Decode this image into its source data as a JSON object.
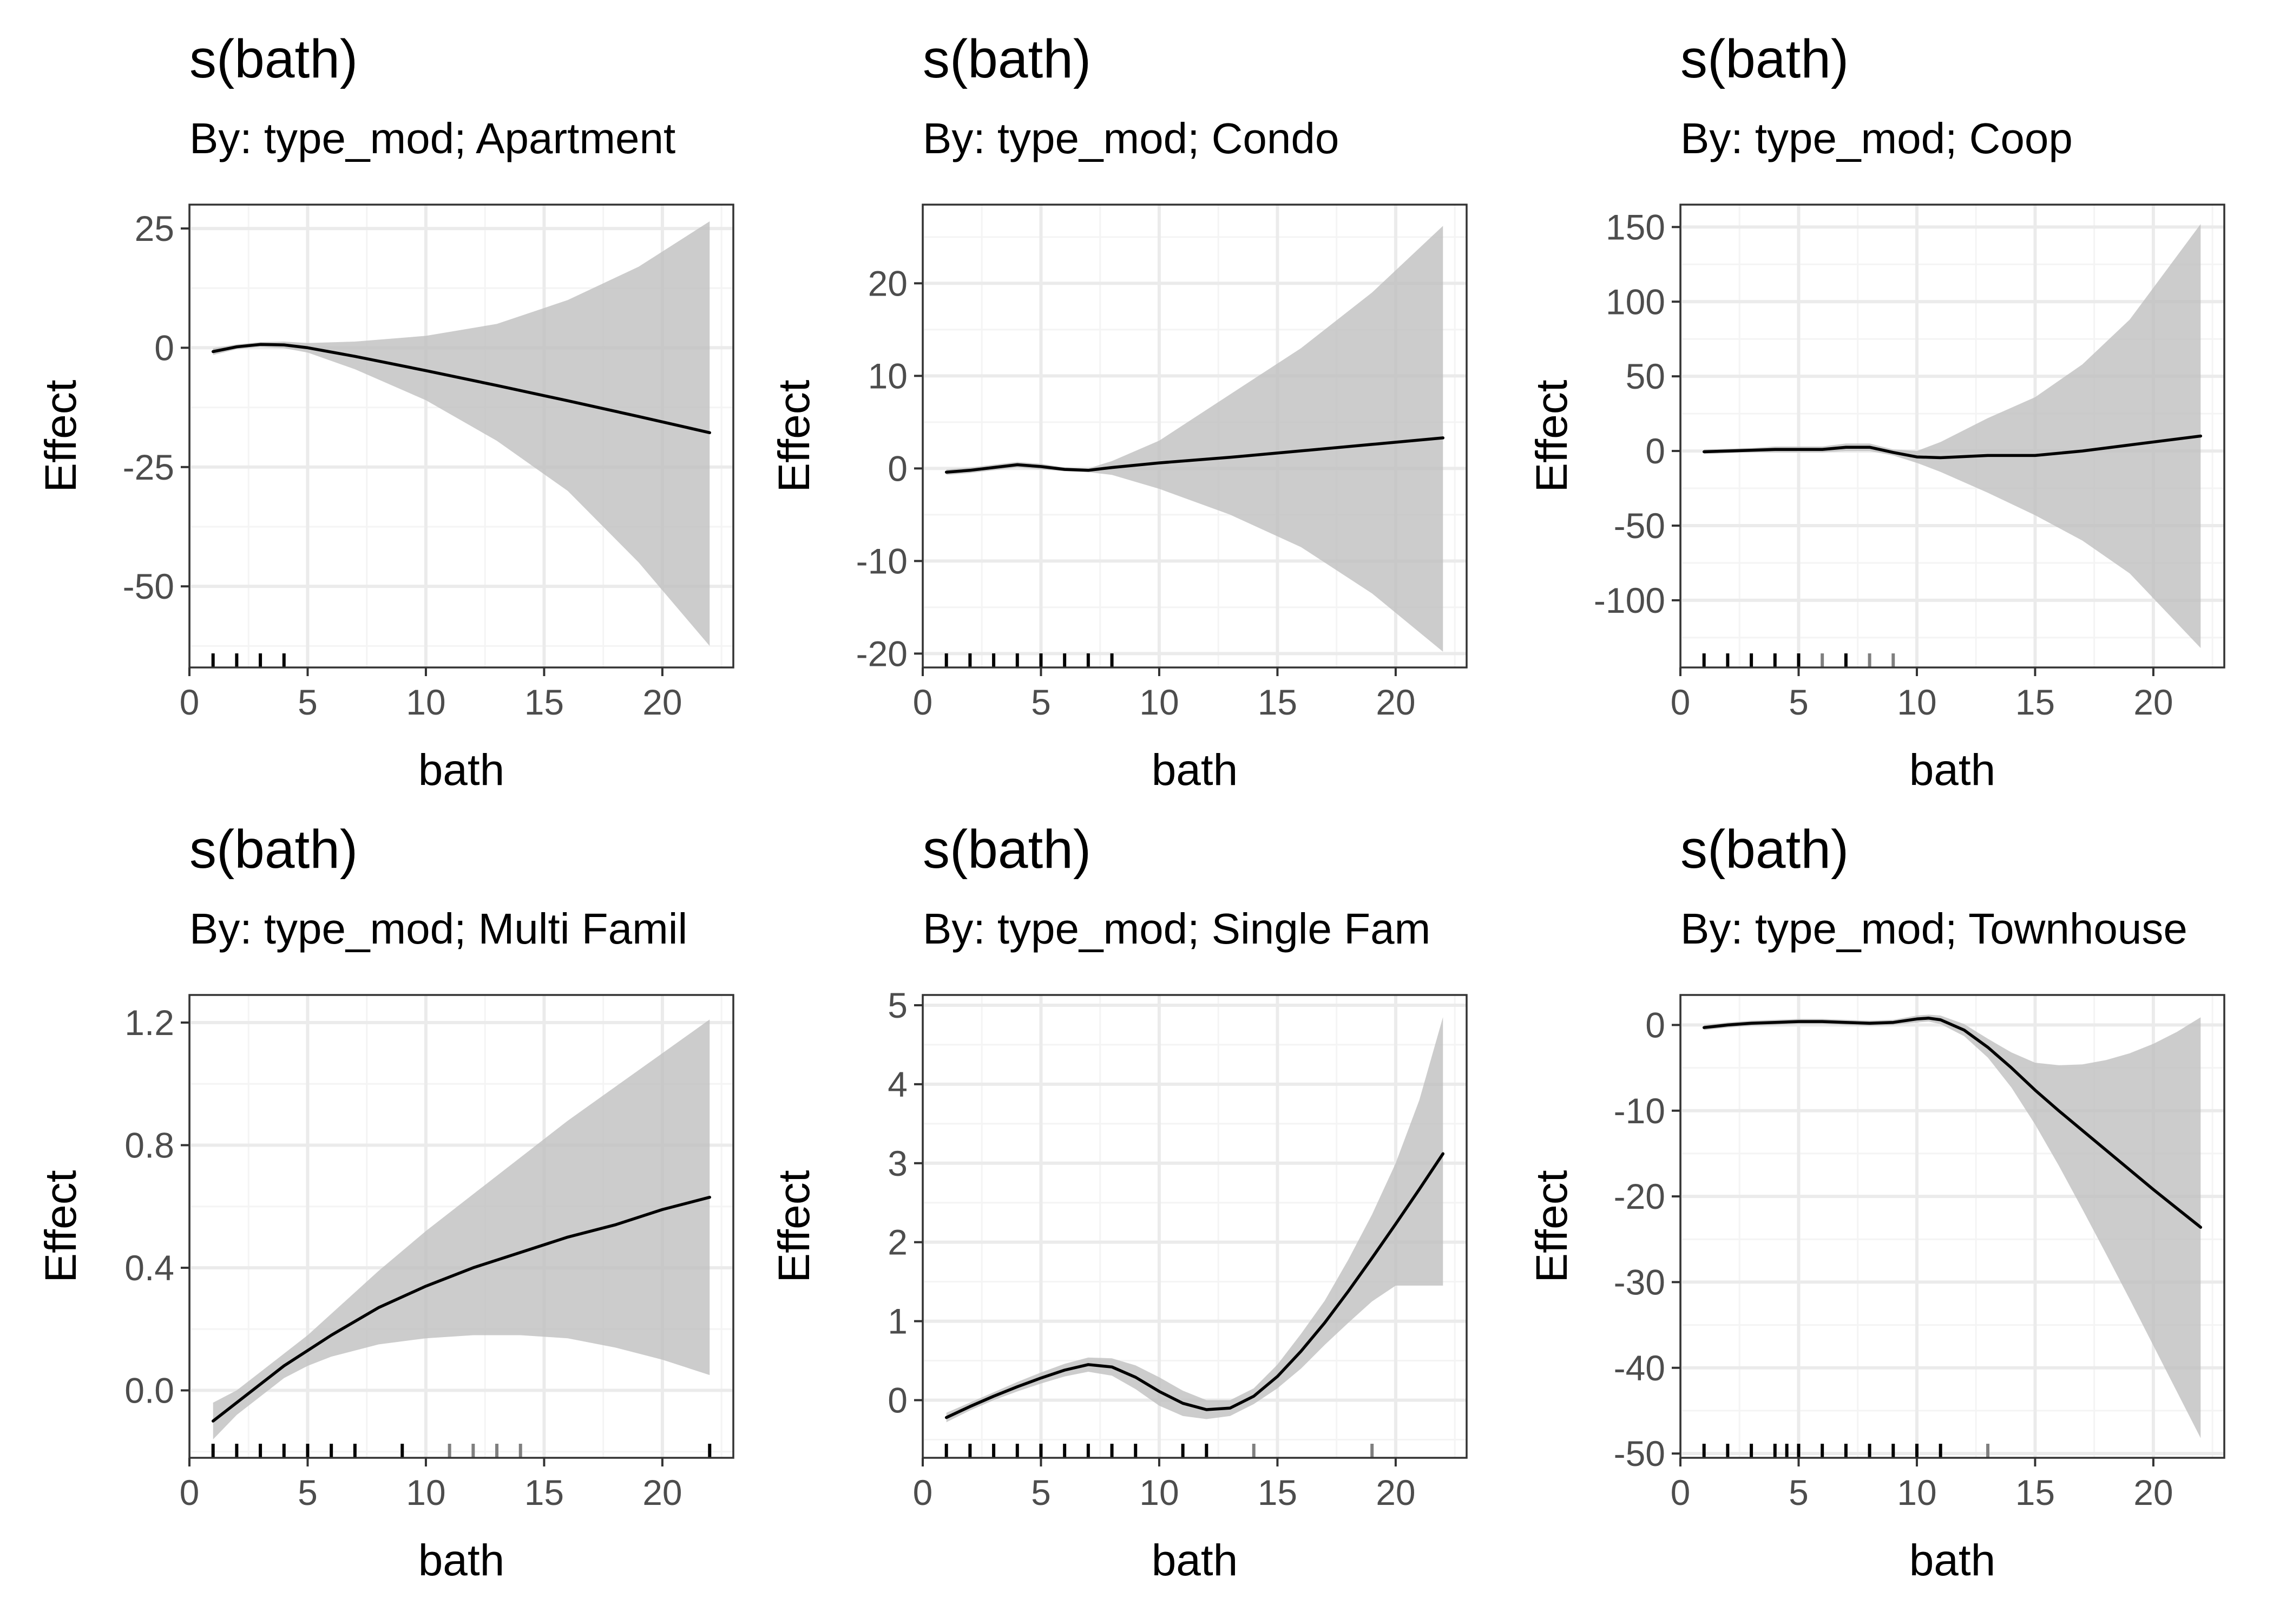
{
  "figure": {
    "background": "#ffffff"
  },
  "style": {
    "band_fill": "#bebebe",
    "band_opacity": 0.78,
    "line_color": "#000000",
    "grid_major": "#ebebeb",
    "grid_minor": "#f4f4f4",
    "panel_border": "#333333",
    "rug_color_dark": "#000000",
    "rug_color_light": "#7f7f7f",
    "grid": true
  },
  "chart_data": [
    {
      "type": "line",
      "title": "s(bath)",
      "subtitle": "By: type_mod; Apartment",
      "xlabel": "bath",
      "ylabel": "Effect",
      "xlim": [
        0,
        23
      ],
      "ylim": [
        -67,
        30
      ],
      "xticks": [
        0,
        5,
        10,
        15,
        20
      ],
      "xtick_labels": [
        "0",
        "5",
        "10",
        "15",
        "20"
      ],
      "yticks": [
        25,
        0,
        -25,
        -50
      ],
      "ytick_labels": [
        "25",
        "0",
        "-25",
        "-50"
      ],
      "series": [
        {
          "x": [
            1,
            2,
            3,
            4,
            5,
            7,
            10,
            13,
            16,
            19,
            22
          ],
          "y": [
            -0.8,
            0.2,
            0.7,
            0.6,
            0.0,
            -1.8,
            -4.8,
            -7.9,
            -11.1,
            -14.4,
            -17.8
          ],
          "lower": [
            -1.5,
            -0.3,
            0.2,
            -0.1,
            -1.0,
            -4.5,
            -11.0,
            -19.5,
            -30.0,
            -45.0,
            -62.5
          ],
          "upper": [
            -0.1,
            0.7,
            1.2,
            1.3,
            1.0,
            1.3,
            2.5,
            5.0,
            10.0,
            17.0,
            26.5
          ]
        }
      ],
      "rug": [
        {
          "x": 1,
          "tone": "dark"
        },
        {
          "x": 2,
          "tone": "dark"
        },
        {
          "x": 3,
          "tone": "dark"
        },
        {
          "x": 4,
          "tone": "dark"
        }
      ]
    },
    {
      "type": "line",
      "title": "s(bath)",
      "subtitle": "By: type_mod; Condo",
      "xlabel": "bath",
      "ylabel": "Effect",
      "xlim": [
        0,
        23
      ],
      "ylim": [
        -21.5,
        28.5
      ],
      "xticks": [
        0,
        5,
        10,
        15,
        20
      ],
      "xtick_labels": [
        "0",
        "5",
        "10",
        "15",
        "20"
      ],
      "yticks": [
        20,
        10,
        0,
        -10,
        -20
      ],
      "ytick_labels": [
        "20",
        "10",
        "0",
        "-10",
        "-20"
      ],
      "series": [
        {
          "x": [
            1,
            2,
            3,
            4,
            5,
            6,
            7,
            8,
            10,
            13,
            16,
            19,
            22
          ],
          "y": [
            -0.4,
            -0.2,
            0.1,
            0.4,
            0.2,
            -0.1,
            -0.2,
            0.1,
            0.6,
            1.2,
            1.9,
            2.6,
            3.3
          ],
          "lower": [
            -0.7,
            -0.5,
            -0.2,
            0.1,
            -0.1,
            -0.3,
            -0.4,
            -0.7,
            -2.2,
            -5.0,
            -8.5,
            -13.5,
            -19.8
          ],
          "upper": [
            -0.1,
            0.1,
            0.4,
            0.7,
            0.5,
            0.1,
            0.0,
            0.8,
            3.0,
            8.0,
            13.0,
            19.0,
            26.2
          ]
        }
      ],
      "rug": [
        {
          "x": 1,
          "tone": "dark"
        },
        {
          "x": 2,
          "tone": "dark"
        },
        {
          "x": 3,
          "tone": "dark"
        },
        {
          "x": 4,
          "tone": "dark"
        },
        {
          "x": 5,
          "tone": "dark"
        },
        {
          "x": 6,
          "tone": "dark"
        },
        {
          "x": 7,
          "tone": "dark"
        },
        {
          "x": 8,
          "tone": "dark"
        }
      ]
    },
    {
      "type": "line",
      "title": "s(bath)",
      "subtitle": "By: type_mod; Coop",
      "xlabel": "bath",
      "ylabel": "Effect",
      "xlim": [
        0,
        23
      ],
      "ylim": [
        -145,
        165
      ],
      "xticks": [
        0,
        5,
        10,
        15,
        20
      ],
      "xtick_labels": [
        "0",
        "5",
        "10",
        "15",
        "20"
      ],
      "yticks": [
        150,
        100,
        50,
        0,
        -50,
        -100
      ],
      "ytick_labels": [
        "150",
        "100",
        "50",
        "0",
        "-50",
        "-100"
      ],
      "series": [
        {
          "x": [
            1,
            2,
            3,
            4,
            5,
            6,
            7,
            8,
            9,
            10,
            11,
            13,
            15,
            17,
            19,
            22
          ],
          "y": [
            -0.5,
            0.0,
            0.5,
            1.0,
            1.0,
            1.0,
            2.5,
            2.5,
            -1.0,
            -4.0,
            -4.5,
            -3.0,
            -3.0,
            0.0,
            4.0,
            10.0
          ],
          "lower": [
            -2,
            -1.5,
            -1,
            -1,
            -1,
            -1,
            0,
            0,
            -3,
            -8,
            -14,
            -28,
            -43,
            -60,
            -82,
            -132
          ],
          "upper": [
            1,
            1.5,
            2,
            3,
            3,
            3,
            5,
            5,
            1,
            0,
            6,
            22,
            36,
            58,
            88,
            152
          ]
        }
      ],
      "rug": [
        {
          "x": 1,
          "tone": "dark"
        },
        {
          "x": 2,
          "tone": "dark"
        },
        {
          "x": 3,
          "tone": "dark"
        },
        {
          "x": 4,
          "tone": "dark"
        },
        {
          "x": 5,
          "tone": "dark"
        },
        {
          "x": 6,
          "tone": "light"
        },
        {
          "x": 7,
          "tone": "dark"
        },
        {
          "x": 8,
          "tone": "light"
        },
        {
          "x": 9,
          "tone": "light"
        }
      ]
    },
    {
      "type": "line",
      "title": "s(bath)",
      "subtitle": "By: type_mod; Multi Famil",
      "xlabel": "bath",
      "ylabel": "Effect",
      "xlim": [
        0,
        23
      ],
      "ylim": [
        -0.22,
        1.29
      ],
      "xticks": [
        0,
        5,
        10,
        15,
        20
      ],
      "xtick_labels": [
        "0",
        "5",
        "10",
        "15",
        "20"
      ],
      "yticks": [
        1.2,
        0.8,
        0.4,
        0.0
      ],
      "ytick_labels": [
        "1.2",
        "0.8",
        "0.4",
        "0.0"
      ],
      "series": [
        {
          "x": [
            1,
            2,
            3,
            4,
            5,
            6,
            8,
            10,
            12,
            14,
            16,
            18,
            20,
            22
          ],
          "y": [
            -0.1,
            -0.04,
            0.02,
            0.08,
            0.13,
            0.18,
            0.27,
            0.34,
            0.4,
            0.45,
            0.5,
            0.54,
            0.59,
            0.63
          ],
          "lower": [
            -0.16,
            -0.08,
            -0.02,
            0.04,
            0.08,
            0.11,
            0.15,
            0.17,
            0.18,
            0.18,
            0.17,
            0.14,
            0.1,
            0.05
          ],
          "upper": [
            -0.04,
            0.0,
            0.06,
            0.12,
            0.18,
            0.25,
            0.39,
            0.52,
            0.64,
            0.76,
            0.88,
            0.99,
            1.1,
            1.21
          ]
        }
      ],
      "rug": [
        {
          "x": 1,
          "tone": "dark"
        },
        {
          "x": 2,
          "tone": "dark"
        },
        {
          "x": 3,
          "tone": "dark"
        },
        {
          "x": 4,
          "tone": "dark"
        },
        {
          "x": 5,
          "tone": "dark"
        },
        {
          "x": 6,
          "tone": "dark"
        },
        {
          "x": 7,
          "tone": "dark"
        },
        {
          "x": 9,
          "tone": "dark"
        },
        {
          "x": 11,
          "tone": "light"
        },
        {
          "x": 12,
          "tone": "light"
        },
        {
          "x": 13,
          "tone": "light"
        },
        {
          "x": 14,
          "tone": "light"
        },
        {
          "x": 22,
          "tone": "dark"
        }
      ]
    },
    {
      "type": "line",
      "title": "s(bath)",
      "subtitle": "By: type_mod; Single Fam",
      "xlabel": "bath",
      "ylabel": "Effect",
      "xlim": [
        0,
        23
      ],
      "ylim": [
        -0.73,
        5.13
      ],
      "xticks": [
        0,
        5,
        10,
        15,
        20
      ],
      "xtick_labels": [
        "0",
        "5",
        "10",
        "15",
        "20"
      ],
      "yticks": [
        5,
        4,
        3,
        2,
        1,
        0
      ],
      "ytick_labels": [
        "5",
        "4",
        "3",
        "2",
        "1",
        "0"
      ],
      "series": [
        {
          "x": [
            1,
            2,
            3,
            4,
            5,
            6,
            7,
            8,
            9,
            10,
            11,
            12,
            13,
            14,
            15,
            16,
            17,
            18,
            19,
            20,
            21,
            22
          ],
          "y": [
            -0.22,
            -0.08,
            0.05,
            0.17,
            0.28,
            0.38,
            0.45,
            0.42,
            0.29,
            0.11,
            -0.04,
            -0.12,
            -0.1,
            0.05,
            0.3,
            0.62,
            0.98,
            1.38,
            1.8,
            2.23,
            2.67,
            3.12
          ],
          "lower": [
            -0.28,
            -0.13,
            0.0,
            0.11,
            0.21,
            0.3,
            0.36,
            0.31,
            0.14,
            -0.07,
            -0.2,
            -0.24,
            -0.2,
            -0.05,
            0.15,
            0.4,
            0.7,
            0.98,
            1.25,
            1.45,
            1.45,
            1.45
          ],
          "upper": [
            -0.16,
            -0.03,
            0.1,
            0.23,
            0.35,
            0.46,
            0.54,
            0.53,
            0.44,
            0.29,
            0.12,
            0.0,
            0.0,
            0.15,
            0.45,
            0.84,
            1.26,
            1.78,
            2.35,
            3.0,
            3.8,
            4.85
          ]
        }
      ],
      "rug": [
        {
          "x": 1,
          "tone": "dark"
        },
        {
          "x": 2,
          "tone": "dark"
        },
        {
          "x": 3,
          "tone": "dark"
        },
        {
          "x": 4,
          "tone": "dark"
        },
        {
          "x": 5,
          "tone": "dark"
        },
        {
          "x": 6,
          "tone": "dark"
        },
        {
          "x": 7,
          "tone": "dark"
        },
        {
          "x": 8,
          "tone": "dark"
        },
        {
          "x": 9,
          "tone": "dark"
        },
        {
          "x": 11,
          "tone": "dark"
        },
        {
          "x": 12,
          "tone": "dark"
        },
        {
          "x": 14,
          "tone": "light"
        },
        {
          "x": 19,
          "tone": "light"
        }
      ]
    },
    {
      "type": "line",
      "title": "s(bath)",
      "subtitle": "By: type_mod; Townhouse",
      "xlabel": "bath",
      "ylabel": "Effect",
      "xlim": [
        0,
        23
      ],
      "ylim": [
        -50.5,
        3.5
      ],
      "xticks": [
        0,
        5,
        10,
        15,
        20
      ],
      "xtick_labels": [
        "0",
        "5",
        "10",
        "15",
        "20"
      ],
      "yticks": [
        0,
        -10,
        -20,
        -30,
        -40,
        -50
      ],
      "ytick_labels": [
        "0",
        "-10",
        "-20",
        "-30",
        "-40",
        "-50"
      ],
      "series": [
        {
          "x": [
            1,
            2,
            3,
            4,
            5,
            6,
            7,
            8,
            9,
            10,
            10.5,
            11,
            12,
            13,
            14,
            15,
            16,
            17,
            18,
            19,
            20,
            21,
            22
          ],
          "y": [
            -0.3,
            0.0,
            0.2,
            0.3,
            0.4,
            0.4,
            0.3,
            0.2,
            0.3,
            0.7,
            0.8,
            0.6,
            -0.6,
            -2.6,
            -5.0,
            -7.6,
            -10.0,
            -12.3,
            -14.6,
            -16.9,
            -19.2,
            -21.4,
            -23.6
          ],
          "lower": [
            -0.6,
            -0.3,
            -0.1,
            0.0,
            0.1,
            0.1,
            0.0,
            -0.1,
            0.0,
            0.3,
            0.4,
            0.1,
            -1.3,
            -3.8,
            -7.3,
            -11.6,
            -16.4,
            -21.5,
            -26.7,
            -32.0,
            -37.4,
            -42.8,
            -48.2
          ],
          "upper": [
            0.0,
            0.3,
            0.5,
            0.6,
            0.7,
            0.7,
            0.6,
            0.5,
            0.6,
            1.1,
            1.2,
            1.1,
            0.1,
            -1.6,
            -3.2,
            -4.4,
            -4.7,
            -4.6,
            -4.1,
            -3.3,
            -2.2,
            -0.8,
            0.9
          ]
        }
      ],
      "rug": [
        {
          "x": 1,
          "tone": "dark"
        },
        {
          "x": 2,
          "tone": "dark"
        },
        {
          "x": 3,
          "tone": "dark"
        },
        {
          "x": 4,
          "tone": "dark"
        },
        {
          "x": 4.5,
          "tone": "dark"
        },
        {
          "x": 5,
          "tone": "dark"
        },
        {
          "x": 6,
          "tone": "dark"
        },
        {
          "x": 7,
          "tone": "dark"
        },
        {
          "x": 8,
          "tone": "dark"
        },
        {
          "x": 9,
          "tone": "dark"
        },
        {
          "x": 10,
          "tone": "dark"
        },
        {
          "x": 11,
          "tone": "dark"
        },
        {
          "x": 13,
          "tone": "light"
        }
      ]
    }
  ]
}
